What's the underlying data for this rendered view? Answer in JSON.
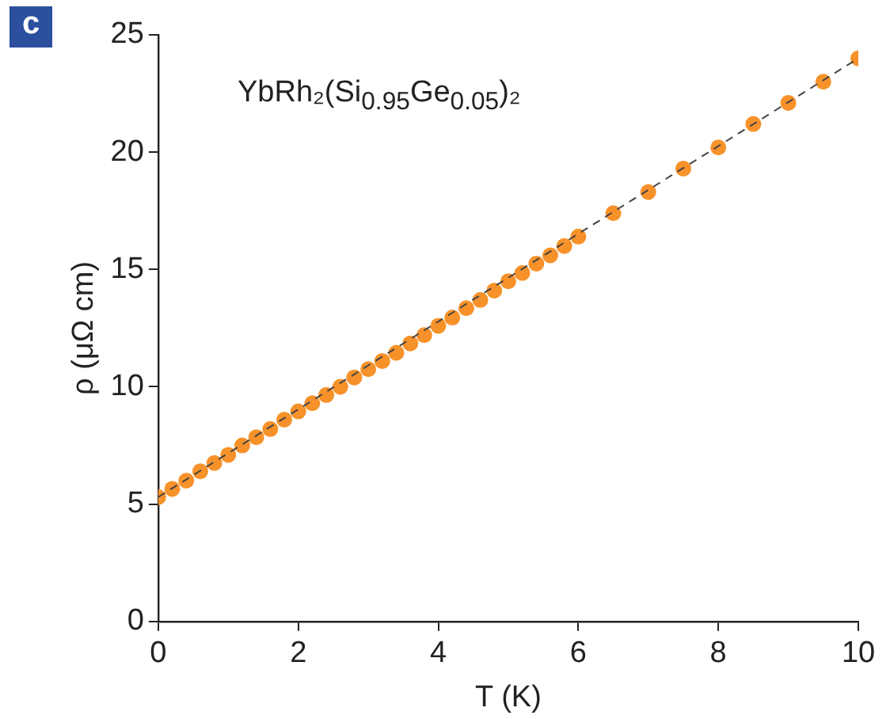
{
  "chart_data": {
    "type": "scatter",
    "xlabel": "T (K)",
    "ylabel": "ρ (μΩ cm)",
    "annotations": [
      "c",
      "YbRh₂(Si$_{0.95}$Ge$_{0.05}$)₂"
    ],
    "xlim": [
      0,
      10
    ],
    "xticks": [
      0,
      2,
      4,
      6,
      8,
      10
    ],
    "ylim": [
      0,
      25
    ],
    "yticks": [
      0,
      5,
      10,
      15,
      20,
      25
    ],
    "grid": false,
    "legend": false,
    "series": [
      {
        "color": "#f7922a",
        "marker": "circle",
        "x": [
          0,
          0.2,
          0.4,
          0.6,
          0.8,
          1.0,
          1.2,
          1.4,
          1.6,
          1.8,
          2.0,
          2.2,
          2.4,
          2.6,
          2.8,
          3.0,
          3.2,
          3.4,
          3.6,
          3.8,
          4.0,
          4.2,
          4.4,
          4.6,
          4.8,
          5.0,
          5.2,
          5.4,
          5.6,
          5.8,
          6.0,
          6.5,
          7,
          7.5,
          8,
          8.5,
          9,
          9.5,
          10
        ],
        "values": [
          5.3,
          5.65,
          6.0,
          6.4,
          6.75,
          7.1,
          7.5,
          7.85,
          8.2,
          8.6,
          8.95,
          9.3,
          9.65,
          10.0,
          10.4,
          10.75,
          11.1,
          11.45,
          11.85,
          12.2,
          12.6,
          12.95,
          13.35,
          13.7,
          14.1,
          14.5,
          14.85,
          15.25,
          15.6,
          16.0,
          16.4,
          17.4,
          18.3,
          19.3,
          20.2,
          21.2,
          22.1,
          23.0,
          24.0
        ]
      },
      {
        "type": "line",
        "color": "#444444",
        "line_style": "dashed",
        "x": [
          0,
          10
        ],
        "values": [
          5.3,
          24.0
        ]
      }
    ]
  }
}
